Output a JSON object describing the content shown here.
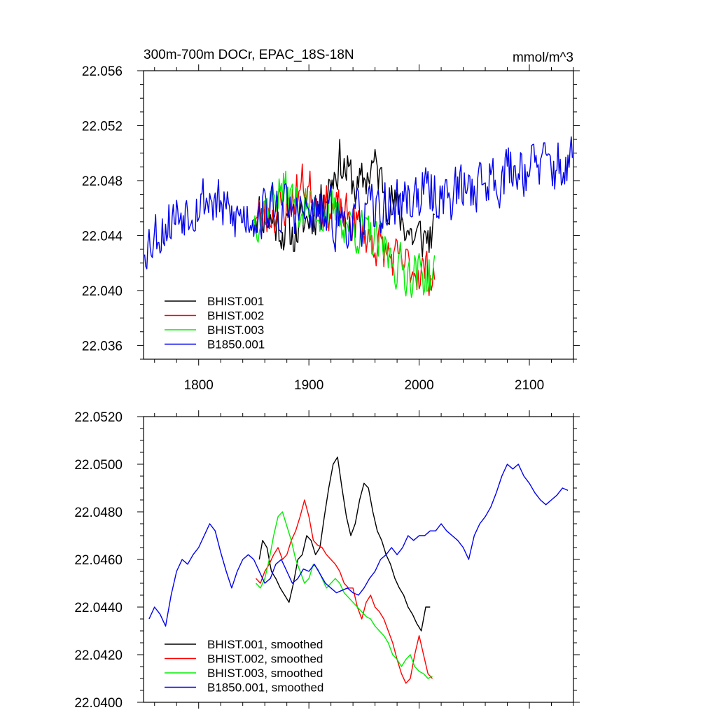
{
  "chart_data": [
    {
      "type": "line",
      "title": "300m-700m DOCr, EPAC_18S-18N",
      "units": "mmol/m^3",
      "xlim": [
        1750,
        2140
      ],
      "ylim": [
        22.035,
        22.056
      ],
      "xticks": [
        1800,
        1900,
        2000,
        2100
      ],
      "yticks": [
        "22.056",
        "22.052",
        "22.048",
        "22.044",
        "22.040",
        "22.036"
      ],
      "legend_position": "bottom-left",
      "series": [
        {
          "name": "BHIST.001",
          "color": "#000000",
          "x_range": [
            1850,
            2014
          ],
          "base": 22.0463,
          "amp": 0.0024,
          "seed": 11,
          "trend": [
            [
              1850,
              22.046
            ],
            [
              1885,
              22.044
            ],
            [
              1910,
              22.0462
            ],
            [
              1928,
              22.0495
            ],
            [
              1945,
              22.0472
            ],
            [
              1958,
              22.0492
            ],
            [
              1975,
              22.0465
            ],
            [
              1995,
              22.0438
            ],
            [
              2014,
              22.044
            ]
          ]
        },
        {
          "name": "BHIST.002",
          "color": "#ff0000",
          "x_range": [
            1850,
            2014
          ],
          "base": 22.046,
          "amp": 0.0023,
          "seed": 23,
          "trend": [
            [
              1850,
              22.0452
            ],
            [
              1880,
              22.0462
            ],
            [
              1895,
              22.0478
            ],
            [
              1915,
              22.0462
            ],
            [
              1940,
              22.045
            ],
            [
              1960,
              22.0435
            ],
            [
              1980,
              22.042
            ],
            [
              2000,
              22.0415
            ],
            [
              2014,
              22.0412
            ]
          ]
        },
        {
          "name": "BHIST.003",
          "color": "#00ee00",
          "x_range": [
            1850,
            2014
          ],
          "base": 22.046,
          "amp": 0.0024,
          "seed": 37,
          "trend": [
            [
              1850,
              22.0452
            ],
            [
              1875,
              22.0475
            ],
            [
              1890,
              22.0462
            ],
            [
              1910,
              22.0458
            ],
            [
              1935,
              22.045
            ],
            [
              1960,
              22.0435
            ],
            [
              1985,
              22.0415
            ],
            [
              2014,
              22.041
            ]
          ]
        },
        {
          "name": "B1850.001",
          "color": "#0000ee",
          "x_range": [
            1751,
            2139
          ],
          "base": 22.046,
          "amp": 0.0028,
          "seed": 53,
          "trend": [
            [
              1751,
              22.0435
            ],
            [
              1790,
              22.0462
            ],
            [
              1810,
              22.0468
            ],
            [
              1830,
              22.0452
            ],
            [
              1870,
              22.046
            ],
            [
              1900,
              22.0455
            ],
            [
              1940,
              22.045
            ],
            [
              1975,
              22.0462
            ],
            [
              2000,
              22.047
            ],
            [
              2030,
              22.047
            ],
            [
              2060,
              22.048
            ],
            [
              2090,
              22.049
            ],
            [
              2139,
              22.049
            ]
          ]
        }
      ]
    },
    {
      "type": "line",
      "title": "",
      "xlim": [
        1750,
        2140
      ],
      "ylim": [
        22.04,
        22.052
      ],
      "xticks": [
        1800,
        1900,
        2000,
        2100
      ],
      "yticks": [
        "22.0520",
        "22.0500",
        "22.0480",
        "22.0460",
        "22.0440",
        "22.0420",
        "22.0400"
      ],
      "legend_position": "bottom-left",
      "series": [
        {
          "name": "BHIST.001, smoothed",
          "color": "#000000",
          "x": [
            1855,
            1858,
            1862,
            1866,
            1870,
            1874,
            1878,
            1882,
            1886,
            1890,
            1894,
            1898,
            1902,
            1906,
            1910,
            1914,
            1918,
            1922,
            1926,
            1930,
            1934,
            1938,
            1942,
            1946,
            1950,
            1954,
            1958,
            1962,
            1966,
            1970,
            1974,
            1978,
            1982,
            1986,
            1990,
            1994,
            1998,
            2002,
            2006,
            2010
          ],
          "y": [
            22.046,
            22.0468,
            22.0465,
            22.0455,
            22.0452,
            22.0448,
            22.0445,
            22.0442,
            22.045,
            22.046,
            22.0462,
            22.047,
            22.0468,
            22.0462,
            22.0465,
            22.0478,
            22.049,
            22.05,
            22.0503,
            22.049,
            22.0478,
            22.047,
            22.0475,
            22.0485,
            22.0492,
            22.049,
            22.048,
            22.0472,
            22.0468,
            22.0462,
            22.0458,
            22.0452,
            22.0448,
            22.0445,
            22.044,
            22.0437,
            22.0433,
            22.043,
            22.044,
            22.044
          ]
        },
        {
          "name": "BHIST.002, smoothed",
          "color": "#ff0000",
          "x": [
            1852,
            1856,
            1860,
            1864,
            1868,
            1872,
            1876,
            1880,
            1884,
            1888,
            1892,
            1896,
            1900,
            1904,
            1908,
            1912,
            1916,
            1920,
            1924,
            1928,
            1932,
            1936,
            1940,
            1944,
            1948,
            1952,
            1956,
            1960,
            1964,
            1968,
            1972,
            1976,
            1980,
            1984,
            1988,
            1992,
            1996,
            2000,
            2004,
            2008,
            2012
          ],
          "y": [
            22.0452,
            22.045,
            22.0455,
            22.0458,
            22.0462,
            22.0465,
            22.046,
            22.0462,
            22.0468,
            22.0472,
            22.0478,
            22.0485,
            22.0478,
            22.0468,
            22.0466,
            22.0465,
            22.0462,
            22.046,
            22.0458,
            22.0455,
            22.045,
            22.0448,
            22.0448,
            22.044,
            22.0435,
            22.0442,
            22.0445,
            22.044,
            22.0438,
            22.0435,
            22.043,
            22.0425,
            22.0418,
            22.0412,
            22.0408,
            22.041,
            22.042,
            22.0428,
            22.042,
            22.0412,
            22.041
          ]
        },
        {
          "name": "BHIST.003, smoothed",
          "color": "#00ee00",
          "x": [
            1852,
            1856,
            1860,
            1864,
            1868,
            1872,
            1876,
            1880,
            1884,
            1888,
            1892,
            1896,
            1900,
            1904,
            1908,
            1912,
            1916,
            1920,
            1924,
            1928,
            1932,
            1936,
            1940,
            1944,
            1948,
            1952,
            1956,
            1960,
            1964,
            1968,
            1972,
            1976,
            1980,
            1984,
            1988,
            1992,
            1996,
            2000,
            2004,
            2008,
            2012
          ],
          "y": [
            22.045,
            22.0448,
            22.0452,
            22.046,
            22.047,
            22.0478,
            22.048,
            22.0474,
            22.0468,
            22.046,
            22.0455,
            22.045,
            22.0452,
            22.0458,
            22.0456,
            22.0452,
            22.0448,
            22.045,
            22.0452,
            22.045,
            22.0446,
            22.0444,
            22.0442,
            22.044,
            22.0438,
            22.0436,
            22.0435,
            22.0432,
            22.043,
            22.0428,
            22.0425,
            22.042,
            22.0418,
            22.0415,
            22.0418,
            22.042,
            22.0415,
            22.0413,
            22.0412,
            22.041,
            22.0411
          ]
        },
        {
          "name": "B1850.001, smoothed",
          "color": "#0000ee",
          "x": [
            1755,
            1760,
            1765,
            1770,
            1775,
            1780,
            1785,
            1790,
            1795,
            1800,
            1805,
            1810,
            1815,
            1820,
            1825,
            1830,
            1835,
            1840,
            1845,
            1850,
            1855,
            1860,
            1865,
            1870,
            1875,
            1880,
            1885,
            1890,
            1895,
            1900,
            1905,
            1910,
            1915,
            1920,
            1925,
            1930,
            1935,
            1940,
            1945,
            1950,
            1955,
            1960,
            1965,
            1970,
            1975,
            1980,
            1985,
            1990,
            1995,
            2000,
            2005,
            2010,
            2015,
            2020,
            2025,
            2030,
            2035,
            2040,
            2045,
            2050,
            2055,
            2060,
            2065,
            2070,
            2075,
            2080,
            2085,
            2090,
            2095,
            2100,
            2105,
            2110,
            2115,
            2120,
            2125,
            2130,
            2135
          ],
          "y": [
            22.0435,
            22.044,
            22.0437,
            22.0432,
            22.0445,
            22.0455,
            22.046,
            22.0458,
            22.0462,
            22.0465,
            22.047,
            22.0475,
            22.0472,
            22.0463,
            22.0455,
            22.0448,
            22.0455,
            22.046,
            22.0462,
            22.046,
            22.0455,
            22.045,
            22.0452,
            22.0458,
            22.046,
            22.0455,
            22.045,
            22.0452,
            22.0456,
            22.0455,
            22.0458,
            22.0454,
            22.045,
            22.0448,
            22.0446,
            22.0447,
            22.0448,
            22.0446,
            22.0445,
            22.0448,
            22.0452,
            22.0455,
            22.046,
            22.0462,
            22.0465,
            22.0462,
            22.0465,
            22.047,
            22.0468,
            22.047,
            22.047,
            22.0472,
            22.0472,
            22.0475,
            22.0472,
            22.047,
            22.0468,
            22.0465,
            22.046,
            22.047,
            22.0475,
            22.0478,
            22.0482,
            22.0488,
            22.0495,
            22.05,
            22.0498,
            22.05,
            22.0495,
            22.0492,
            22.0488,
            22.0485,
            22.0483,
            22.0485,
            22.0487,
            22.049,
            22.0489
          ]
        }
      ]
    }
  ]
}
